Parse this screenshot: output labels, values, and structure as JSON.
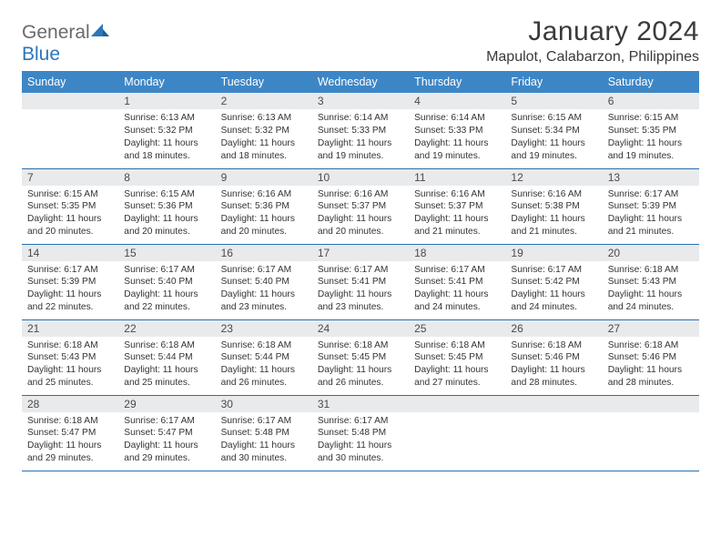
{
  "logo": {
    "general": "General",
    "blue": "Blue"
  },
  "title": {
    "month": "January 2024",
    "location": "Mapulot, Calabarzon, Philippines"
  },
  "colors": {
    "header_bg": "#3d86c6",
    "header_text": "#ffffff",
    "daynum_bg": "#e9eaec",
    "rule": "#2a6fa8",
    "logo_gray": "#6a6a6a",
    "logo_blue": "#2a77bb",
    "body_text": "#333333"
  },
  "dow": [
    "Sunday",
    "Monday",
    "Tuesday",
    "Wednesday",
    "Thursday",
    "Friday",
    "Saturday"
  ],
  "weeks": [
    [
      {
        "n": "",
        "sr": "",
        "ss": "",
        "dl": ""
      },
      {
        "n": "1",
        "sr": "Sunrise: 6:13 AM",
        "ss": "Sunset: 5:32 PM",
        "dl": "Daylight: 11 hours and 18 minutes."
      },
      {
        "n": "2",
        "sr": "Sunrise: 6:13 AM",
        "ss": "Sunset: 5:32 PM",
        "dl": "Daylight: 11 hours and 18 minutes."
      },
      {
        "n": "3",
        "sr": "Sunrise: 6:14 AM",
        "ss": "Sunset: 5:33 PM",
        "dl": "Daylight: 11 hours and 19 minutes."
      },
      {
        "n": "4",
        "sr": "Sunrise: 6:14 AM",
        "ss": "Sunset: 5:33 PM",
        "dl": "Daylight: 11 hours and 19 minutes."
      },
      {
        "n": "5",
        "sr": "Sunrise: 6:15 AM",
        "ss": "Sunset: 5:34 PM",
        "dl": "Daylight: 11 hours and 19 minutes."
      },
      {
        "n": "6",
        "sr": "Sunrise: 6:15 AM",
        "ss": "Sunset: 5:35 PM",
        "dl": "Daylight: 11 hours and 19 minutes."
      }
    ],
    [
      {
        "n": "7",
        "sr": "Sunrise: 6:15 AM",
        "ss": "Sunset: 5:35 PM",
        "dl": "Daylight: 11 hours and 20 minutes."
      },
      {
        "n": "8",
        "sr": "Sunrise: 6:15 AM",
        "ss": "Sunset: 5:36 PM",
        "dl": "Daylight: 11 hours and 20 minutes."
      },
      {
        "n": "9",
        "sr": "Sunrise: 6:16 AM",
        "ss": "Sunset: 5:36 PM",
        "dl": "Daylight: 11 hours and 20 minutes."
      },
      {
        "n": "10",
        "sr": "Sunrise: 6:16 AM",
        "ss": "Sunset: 5:37 PM",
        "dl": "Daylight: 11 hours and 20 minutes."
      },
      {
        "n": "11",
        "sr": "Sunrise: 6:16 AM",
        "ss": "Sunset: 5:37 PM",
        "dl": "Daylight: 11 hours and 21 minutes."
      },
      {
        "n": "12",
        "sr": "Sunrise: 6:16 AM",
        "ss": "Sunset: 5:38 PM",
        "dl": "Daylight: 11 hours and 21 minutes."
      },
      {
        "n": "13",
        "sr": "Sunrise: 6:17 AM",
        "ss": "Sunset: 5:39 PM",
        "dl": "Daylight: 11 hours and 21 minutes."
      }
    ],
    [
      {
        "n": "14",
        "sr": "Sunrise: 6:17 AM",
        "ss": "Sunset: 5:39 PM",
        "dl": "Daylight: 11 hours and 22 minutes."
      },
      {
        "n": "15",
        "sr": "Sunrise: 6:17 AM",
        "ss": "Sunset: 5:40 PM",
        "dl": "Daylight: 11 hours and 22 minutes."
      },
      {
        "n": "16",
        "sr": "Sunrise: 6:17 AM",
        "ss": "Sunset: 5:40 PM",
        "dl": "Daylight: 11 hours and 23 minutes."
      },
      {
        "n": "17",
        "sr": "Sunrise: 6:17 AM",
        "ss": "Sunset: 5:41 PM",
        "dl": "Daylight: 11 hours and 23 minutes."
      },
      {
        "n": "18",
        "sr": "Sunrise: 6:17 AM",
        "ss": "Sunset: 5:41 PM",
        "dl": "Daylight: 11 hours and 24 minutes."
      },
      {
        "n": "19",
        "sr": "Sunrise: 6:17 AM",
        "ss": "Sunset: 5:42 PM",
        "dl": "Daylight: 11 hours and 24 minutes."
      },
      {
        "n": "20",
        "sr": "Sunrise: 6:18 AM",
        "ss": "Sunset: 5:43 PM",
        "dl": "Daylight: 11 hours and 24 minutes."
      }
    ],
    [
      {
        "n": "21",
        "sr": "Sunrise: 6:18 AM",
        "ss": "Sunset: 5:43 PM",
        "dl": "Daylight: 11 hours and 25 minutes."
      },
      {
        "n": "22",
        "sr": "Sunrise: 6:18 AM",
        "ss": "Sunset: 5:44 PM",
        "dl": "Daylight: 11 hours and 25 minutes."
      },
      {
        "n": "23",
        "sr": "Sunrise: 6:18 AM",
        "ss": "Sunset: 5:44 PM",
        "dl": "Daylight: 11 hours and 26 minutes."
      },
      {
        "n": "24",
        "sr": "Sunrise: 6:18 AM",
        "ss": "Sunset: 5:45 PM",
        "dl": "Daylight: 11 hours and 26 minutes."
      },
      {
        "n": "25",
        "sr": "Sunrise: 6:18 AM",
        "ss": "Sunset: 5:45 PM",
        "dl": "Daylight: 11 hours and 27 minutes."
      },
      {
        "n": "26",
        "sr": "Sunrise: 6:18 AM",
        "ss": "Sunset: 5:46 PM",
        "dl": "Daylight: 11 hours and 28 minutes."
      },
      {
        "n": "27",
        "sr": "Sunrise: 6:18 AM",
        "ss": "Sunset: 5:46 PM",
        "dl": "Daylight: 11 hours and 28 minutes."
      }
    ],
    [
      {
        "n": "28",
        "sr": "Sunrise: 6:18 AM",
        "ss": "Sunset: 5:47 PM",
        "dl": "Daylight: 11 hours and 29 minutes."
      },
      {
        "n": "29",
        "sr": "Sunrise: 6:17 AM",
        "ss": "Sunset: 5:47 PM",
        "dl": "Daylight: 11 hours and 29 minutes."
      },
      {
        "n": "30",
        "sr": "Sunrise: 6:17 AM",
        "ss": "Sunset: 5:48 PM",
        "dl": "Daylight: 11 hours and 30 minutes."
      },
      {
        "n": "31",
        "sr": "Sunrise: 6:17 AM",
        "ss": "Sunset: 5:48 PM",
        "dl": "Daylight: 11 hours and 30 minutes."
      },
      {
        "n": "",
        "sr": "",
        "ss": "",
        "dl": ""
      },
      {
        "n": "",
        "sr": "",
        "ss": "",
        "dl": ""
      },
      {
        "n": "",
        "sr": "",
        "ss": "",
        "dl": ""
      }
    ]
  ]
}
